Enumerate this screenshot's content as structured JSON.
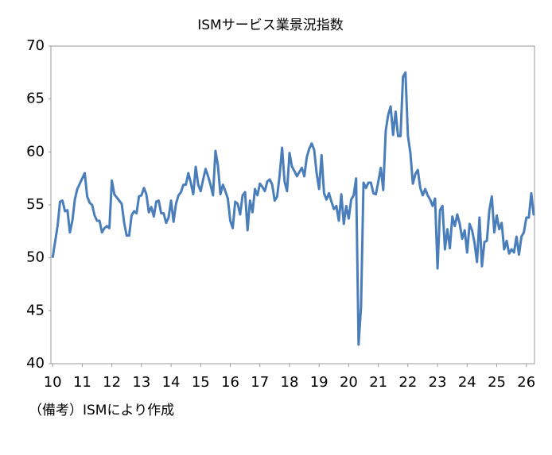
{
  "chart_data": {
    "type": "line",
    "title": "ISMサービス業景況指数",
    "note": "（備考）ISMにより作成",
    "color": "#4a7ebb",
    "values": [
      50,
      51.5,
      53,
      55.3,
      55.4,
      54.4,
      54.5,
      52.4,
      53.5,
      55.5,
      56.5,
      57.0,
      57.5,
      58,
      55.8,
      55.2,
      55,
      54,
      53.5,
      53.5,
      52.4,
      52.8,
      53,
      52.8,
      57.3,
      56,
      55.7,
      55.4,
      55.1,
      53.3,
      52.1,
      52.1,
      54,
      54.4,
      54.2,
      55.8,
      55.9,
      56.6,
      56,
      54.3,
      54.8,
      53.9,
      55.3,
      55.4,
      54.2,
      54.2,
      53.3,
      53.8,
      55.4,
      53.4,
      55.1,
      55.9,
      56.2,
      56.9,
      56.9,
      58,
      57.1,
      56,
      58.6,
      56.9,
      56.3,
      57.4,
      58.4,
      57.7,
      56.9,
      55.9,
      60.1,
      58.7,
      56,
      56.9,
      56.3,
      55.6,
      53.5,
      52.8,
      55.3,
      55.1,
      54.1,
      55.9,
      56.2,
      52.6,
      55.4,
      54.3,
      56.5,
      55.9,
      57.0,
      56.7,
      56.3,
      57.2,
      57.4,
      56.9,
      55.4,
      55.8,
      57.8,
      60.4,
      57.2,
      56.3,
      59.9,
      58.6,
      58.2,
      57.7,
      58.1,
      58.5,
      57.7,
      59.5,
      60.3,
      60.8,
      60.2,
      58.0,
      56.5,
      59.7,
      56.1,
      55.5,
      56.1,
      55.3,
      54.6,
      54.9,
      53.5,
      56.0,
      53.2,
      54.9,
      53.7,
      55.5,
      55.9,
      57.5,
      41.8,
      45.4,
      57.1,
      56.6,
      57.1,
      57.1,
      56.1,
      56.0,
      57.2,
      58.5,
      56.4,
      62.0,
      63.5,
      64.3,
      61.6,
      63.8,
      61.5,
      61.5,
      67.1,
      67.5,
      61.5,
      59.9,
      57.0,
      57.9,
      58.3,
      56.6,
      55.9,
      56.5,
      55.9,
      55.5,
      54.9,
      55.6,
      49.0,
      54.5,
      54.9,
      50.8,
      52.7,
      50.9,
      53.9,
      53.0,
      54.1,
      53.2,
      51.8,
      52.6,
      50.5,
      53.2,
      52.6,
      51.4,
      49.6,
      53.8,
      49.2,
      51.5,
      51.6,
      54.5,
      55.8,
      52.4,
      54.0,
      52.7,
      53.3,
      50.8,
      51.6,
      50.4,
      50.8,
      50.5,
      52.0,
      50.3,
      52.0,
      52.4,
      53.8,
      53.8,
      56.1,
      54.0
    ],
    "xlim": [
      -0.7,
      195.3
    ],
    "xticks": [
      {
        "value": 0,
        "label": "10"
      },
      {
        "value": 12,
        "label": "11"
      },
      {
        "value": 24,
        "label": "12"
      },
      {
        "value": 36,
        "label": "13"
      },
      {
        "value": 48,
        "label": "14"
      },
      {
        "value": 60,
        "label": "15"
      },
      {
        "value": 72,
        "label": "16"
      },
      {
        "value": 84,
        "label": "17"
      },
      {
        "value": 96,
        "label": "18"
      },
      {
        "value": 108,
        "label": "19"
      },
      {
        "value": 120,
        "label": "20"
      },
      {
        "value": 132,
        "label": "21"
      },
      {
        "value": 144,
        "label": "22"
      },
      {
        "value": 156,
        "label": "23"
      },
      {
        "value": 168,
        "label": "24"
      },
      {
        "value": 180,
        "label": "25"
      },
      {
        "value": 192,
        "label": "26"
      }
    ],
    "ylim": [
      40,
      70
    ],
    "yticks": [
      40,
      45,
      50,
      55,
      60,
      65,
      70
    ]
  }
}
